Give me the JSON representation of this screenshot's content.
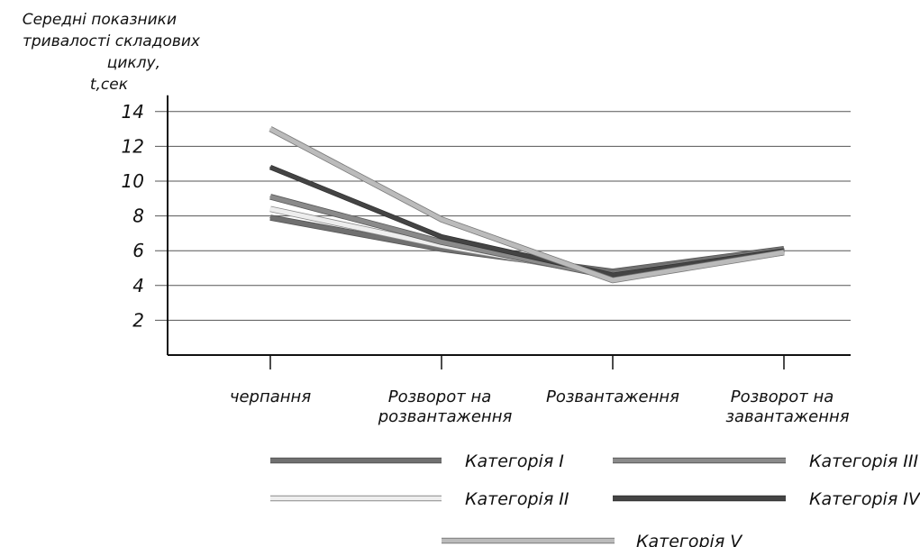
{
  "chart_data": {
    "type": "line",
    "ylabel_lines": [
      "Середні показники",
      "тривалості складових",
      "циклу,",
      "t,сек"
    ],
    "categories": [
      [
        "черпання"
      ],
      [
        "Розворот на",
        "розвантаження"
      ],
      [
        "Розвантаження"
      ],
      [
        "Розворот на",
        "завантаження"
      ]
    ],
    "ylim": [
      0,
      14
    ],
    "yticks": [
      2,
      4,
      6,
      8,
      10,
      12,
      14
    ],
    "grid": true,
    "legend_position": "bottom",
    "series": [
      {
        "name": "Категорія I",
        "values": [
          7.9,
          6.1,
          4.8,
          6.1
        ],
        "color": "#707070",
        "stroke": "#555555",
        "width": 5
      },
      {
        "name": "Категорія II",
        "values": [
          8.4,
          6.3,
          4.6,
          6.0
        ],
        "color": "#eeeeee",
        "stroke": "#8a8a8a",
        "width": 5
      },
      {
        "name": "Категорія III",
        "values": [
          9.1,
          6.5,
          4.5,
          5.9
        ],
        "color": "#8a8a8a",
        "stroke": "#5a5a5a",
        "width": 5
      },
      {
        "name": "Категорія IV",
        "values": [
          10.8,
          6.8,
          4.6,
          6.0
        ],
        "color": "#444444",
        "stroke": "#333333",
        "width": 4
      },
      {
        "name": "Категорія V",
        "values": [
          13.0,
          7.8,
          4.3,
          5.9
        ],
        "color": "#bbbbbb",
        "stroke": "#7a7a7a",
        "width": 5
      }
    ]
  }
}
